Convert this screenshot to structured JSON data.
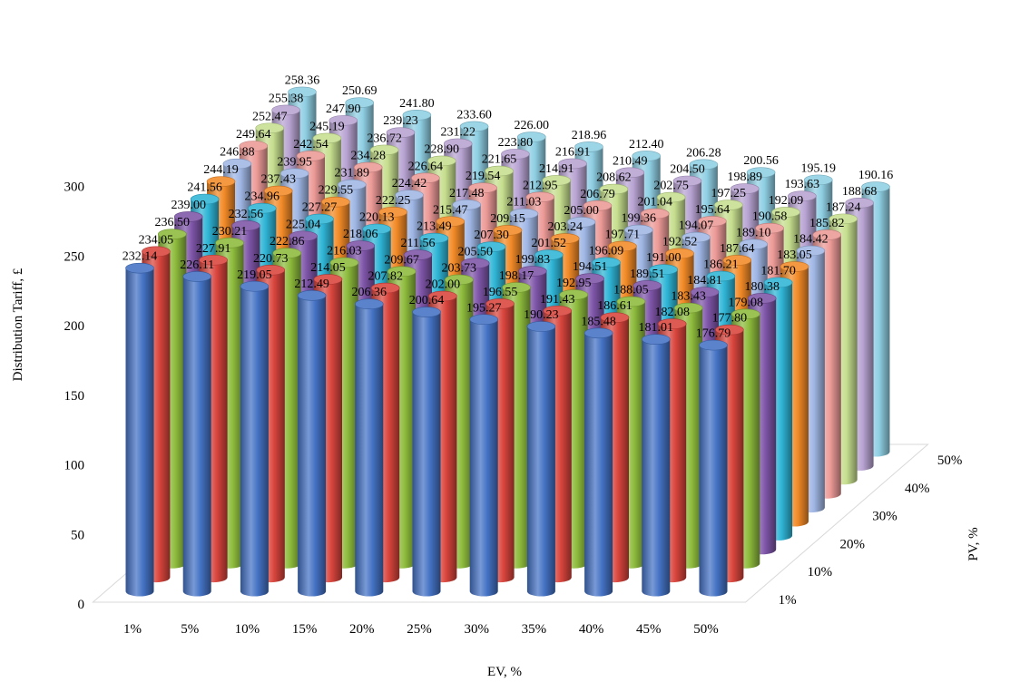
{
  "chart_data": {
    "type": "bar",
    "subtype": "3d-cylinder",
    "title": "",
    "xlabel": "EV, %",
    "ylabel": "Distribution Tariff, £",
    "zlabel": "PV, %",
    "ylim": [
      0,
      300
    ],
    "yticks": [
      "0",
      "50",
      "100",
      "150",
      "200",
      "250",
      "300"
    ],
    "grid": false,
    "legend": "none",
    "categories": [
      "1%",
      "5%",
      "10%",
      "15%",
      "20%",
      "25%",
      "30%",
      "35%",
      "40%",
      "45%",
      "50%"
    ],
    "series": [
      {
        "name": "1%",
        "color": "#4472C4",
        "values": [
          232.14,
          226.11,
          219.05,
          212.49,
          206.36,
          200.64,
          195.27,
          190.23,
          185.48,
          181.01,
          176.79
        ]
      },
      {
        "name": "",
        "color": "#D9453D",
        "values": [
          234.05,
          227.91,
          220.73,
          214.05,
          207.82,
          202.0,
          196.55,
          191.43,
          186.61,
          182.08,
          177.8
        ]
      },
      {
        "name": "10%",
        "color": "#8DBB3C",
        "values": [
          236.5,
          230.21,
          222.86,
          216.03,
          209.67,
          203.73,
          198.17,
          192.95,
          188.05,
          183.43,
          179.08
        ]
      },
      {
        "name": "",
        "color": "#7E55A8",
        "values": [
          239.0,
          232.56,
          225.04,
          218.06,
          211.56,
          205.5,
          199.83,
          194.51,
          189.51,
          184.81,
          180.38
        ]
      },
      {
        "name": "20%",
        "color": "#2FB5D6",
        "values": [
          241.56,
          234.96,
          227.27,
          220.13,
          213.49,
          207.3,
          201.52,
          196.09,
          191.0,
          186.21,
          181.7
        ]
      },
      {
        "name": "",
        "color": "#F28A27",
        "values": [
          244.19,
          237.43,
          229.55,
          222.25,
          215.47,
          209.15,
          203.24,
          197.71,
          192.52,
          187.64,
          183.05
        ]
      },
      {
        "name": "30%",
        "color": "#9FB6E4",
        "values": [
          246.88,
          239.95,
          231.89,
          224.42,
          217.48,
          211.03,
          205.0,
          199.36,
          194.07,
          189.1,
          184.42
        ]
      },
      {
        "name": "",
        "color": "#EC9A97",
        "values": [
          249.64,
          242.54,
          234.28,
          226.64,
          219.54,
          212.95,
          206.79,
          201.04,
          195.64,
          190.58,
          185.82
        ]
      },
      {
        "name": "40%",
        "color": "#C6DE8E",
        "values": [
          252.47,
          245.19,
          236.72,
          228.9,
          221.65,
          214.91,
          208.62,
          202.75,
          197.25,
          192.09,
          187.24
        ]
      },
      {
        "name": "",
        "color": "#B8A3D2",
        "values": [
          255.38,
          247.9,
          239.23,
          231.22,
          223.8,
          216.91,
          210.49,
          204.5,
          198.89,
          193.63,
          188.68
        ]
      },
      {
        "name": "50%",
        "color": "#8FCFE3",
        "values": [
          258.36,
          250.69,
          241.8,
          233.6,
          226.0,
          218.96,
          212.4,
          206.28,
          200.56,
          195.19,
          190.16
        ]
      }
    ]
  }
}
